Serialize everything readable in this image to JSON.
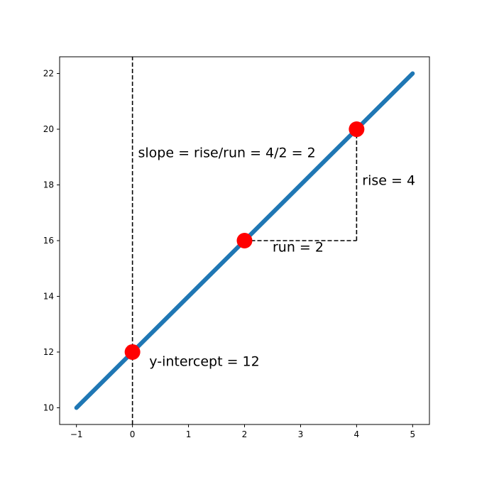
{
  "chart_data": {
    "type": "line",
    "title": "",
    "xlabel": "",
    "ylabel": "",
    "xlim": [
      -1.3,
      5.3
    ],
    "ylim": [
      9.4,
      22.6
    ],
    "x_ticks": [
      -1,
      0,
      1,
      2,
      3,
      4,
      5
    ],
    "x_tick_labels": [
      "−1",
      "0",
      "1",
      "2",
      "3",
      "4",
      "5"
    ],
    "y_ticks": [
      10,
      12,
      14,
      16,
      18,
      20,
      22
    ],
    "y_tick_labels": [
      "10",
      "12",
      "14",
      "16",
      "18",
      "20",
      "22"
    ],
    "grid": false,
    "series": [
      {
        "type": "line",
        "x": [
          -1,
          5
        ],
        "y": [
          10,
          22
        ],
        "color": "#1f77b4"
      }
    ],
    "points": [
      {
        "x": 0,
        "y": 12,
        "color": "#ff0000"
      },
      {
        "x": 2,
        "y": 16,
        "color": "#ff0000"
      },
      {
        "x": 4,
        "y": 20,
        "color": "#ff0000"
      }
    ],
    "guides": [
      {
        "name": "y-axis-guide",
        "x": [
          0,
          0
        ],
        "y": [
          9.4,
          22.6
        ],
        "style": "dashed"
      },
      {
        "name": "run-guide",
        "x": [
          2,
          4
        ],
        "y": [
          16,
          16
        ],
        "style": "dashed"
      },
      {
        "name": "rise-guide",
        "x": [
          4,
          4
        ],
        "y": [
          16,
          20
        ],
        "style": "dashed"
      }
    ],
    "annotations": [
      {
        "name": "slope-annotation",
        "text": "slope = rise/run = 4/2 = 2",
        "x": 0.1,
        "y": 19.0
      },
      {
        "name": "rise-annotation",
        "text": "rise = 4",
        "x": 4.1,
        "y": 18.0
      },
      {
        "name": "run-annotation",
        "text": "run = 2",
        "x": 2.5,
        "y": 15.6
      },
      {
        "name": "intercept-annotation",
        "text": "y-intercept = 12",
        "x": 0.3,
        "y": 11.5
      }
    ]
  }
}
